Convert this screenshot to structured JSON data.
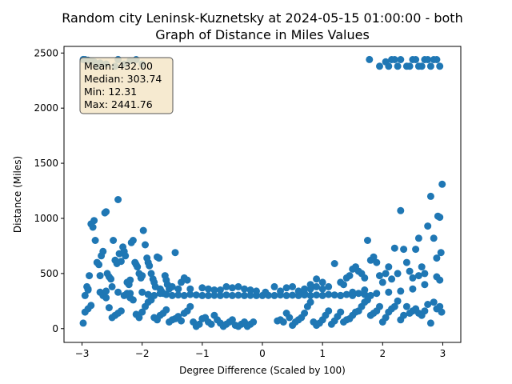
{
  "chart_data": {
    "type": "scatter",
    "title_line1": "Random city Leninsk-Kuznetsky at 2024-05-15 01:00:00  - both",
    "title_line2": "Graph of Distance in Miles Values",
    "xlabel": "Degree Difference (Scaled by 100)",
    "ylabel": "Distance (Miles)",
    "xlim": [
      -3.3,
      3.3
    ],
    "ylim": [
      -125,
      2560
    ],
    "x_ticks": [
      -3,
      -2,
      -1,
      0,
      1,
      2,
      3
    ],
    "y_ticks": [
      0,
      500,
      1000,
      1500,
      2000,
      2500
    ],
    "grid": false,
    "marker_color": "#1f77b4",
    "stats": {
      "mean": "Mean: 432.00",
      "median": "Median: 303.74",
      "min": "Min: 12.31",
      "max": "Max: 2441.76"
    },
    "stats_box_color": "#f5e6c8",
    "points": [
      [
        -2.98,
        2441
      ],
      [
        -2.95,
        2440
      ],
      [
        -2.9,
        2435
      ],
      [
        -2.85,
        2430
      ],
      [
        -2.8,
        2420
      ],
      [
        -2.75,
        2380
      ],
      [
        -2.7,
        2410
      ],
      [
        -2.6,
        2400
      ],
      [
        -2.45,
        2380
      ],
      [
        -2.4,
        2441
      ],
      [
        -2.3,
        2400
      ],
      [
        -2.2,
        2430
      ],
      [
        -2.1,
        2440
      ],
      [
        -2.0,
        2400
      ],
      [
        1.78,
        2441
      ],
      [
        1.95,
        2380
      ],
      [
        2.05,
        2420
      ],
      [
        2.1,
        2380
      ],
      [
        2.15,
        2440
      ],
      [
        2.2,
        2440
      ],
      [
        2.25,
        2380
      ],
      [
        2.3,
        2440
      ],
      [
        2.4,
        2380
      ],
      [
        2.45,
        2380
      ],
      [
        2.5,
        2440
      ],
      [
        2.55,
        2440
      ],
      [
        2.6,
        2380
      ],
      [
        2.65,
        2380
      ],
      [
        2.7,
        2440
      ],
      [
        2.75,
        2440
      ],
      [
        2.8,
        2380
      ],
      [
        2.85,
        2440
      ],
      [
        2.9,
        2440
      ],
      [
        2.95,
        2380
      ],
      [
        -2.98,
        50
      ],
      [
        -2.95,
        300
      ],
      [
        -2.92,
        380
      ],
      [
        -2.9,
        350
      ],
      [
        -2.88,
        480
      ],
      [
        -2.85,
        950
      ],
      [
        -2.82,
        920
      ],
      [
        -2.8,
        980
      ],
      [
        -2.78,
        800
      ],
      [
        -2.75,
        600
      ],
      [
        -2.72,
        580
      ],
      [
        -2.7,
        480
      ],
      [
        -2.68,
        660
      ],
      [
        -2.65,
        700
      ],
      [
        -2.62,
        1050
      ],
      [
        -2.6,
        1060
      ],
      [
        -2.58,
        500
      ],
      [
        -2.55,
        470
      ],
      [
        -2.52,
        450
      ],
      [
        -2.5,
        380
      ],
      [
        -2.48,
        800
      ],
      [
        -2.45,
        620
      ],
      [
        -2.42,
        590
      ],
      [
        -2.4,
        1170
      ],
      [
        -2.38,
        680
      ],
      [
        -2.35,
        610
      ],
      [
        -2.32,
        740
      ],
      [
        -2.3,
        700
      ],
      [
        -2.28,
        660
      ],
      [
        -2.25,
        420
      ],
      [
        -2.22,
        400
      ],
      [
        -2.2,
        440
      ],
      [
        -2.18,
        780
      ],
      [
        -2.15,
        800
      ],
      [
        -2.12,
        600
      ],
      [
        -2.1,
        580
      ],
      [
        -2.08,
        560
      ],
      [
        -2.05,
        500
      ],
      [
        -2.02,
        460
      ],
      [
        -2.0,
        480
      ],
      [
        -1.98,
        890
      ],
      [
        -1.95,
        760
      ],
      [
        -1.92,
        640
      ],
      [
        -1.9,
        600
      ],
      [
        -1.88,
        570
      ],
      [
        -1.85,
        500
      ],
      [
        -1.82,
        450
      ],
      [
        -1.8,
        420
      ],
      [
        -1.78,
        380
      ],
      [
        -1.75,
        650
      ],
      [
        -1.72,
        640
      ],
      [
        -1.7,
        360
      ],
      [
        -1.68,
        340
      ],
      [
        -1.65,
        320
      ],
      [
        -1.62,
        480
      ],
      [
        -1.6,
        440
      ],
      [
        -1.58,
        400
      ],
      [
        -1.55,
        360
      ],
      [
        -1.5,
        380
      ],
      [
        -1.45,
        690
      ],
      [
        -1.4,
        360
      ],
      [
        -1.35,
        420
      ],
      [
        -1.3,
        460
      ],
      [
        -1.25,
        440
      ],
      [
        -2.95,
        150
      ],
      [
        -2.9,
        180
      ],
      [
        -2.85,
        210
      ],
      [
        -2.7,
        330
      ],
      [
        -2.65,
        300
      ],
      [
        -2.6,
        280
      ],
      [
        -2.55,
        190
      ],
      [
        -2.5,
        100
      ],
      [
        -2.45,
        120
      ],
      [
        -2.4,
        140
      ],
      [
        -2.35,
        160
      ],
      [
        -2.3,
        300
      ],
      [
        -2.25,
        320
      ],
      [
        -2.2,
        280
      ],
      [
        -2.15,
        260
      ],
      [
        -2.1,
        130
      ],
      [
        -2.05,
        100
      ],
      [
        -2.0,
        150
      ],
      [
        -1.95,
        200
      ],
      [
        -1.9,
        240
      ],
      [
        -1.85,
        260
      ],
      [
        -1.8,
        100
      ],
      [
        -1.75,
        80
      ],
      [
        -1.7,
        120
      ],
      [
        -1.65,
        140
      ],
      [
        -1.6,
        170
      ],
      [
        -1.55,
        60
      ],
      [
        -1.5,
        80
      ],
      [
        -1.45,
        90
      ],
      [
        -1.4,
        110
      ],
      [
        -1.35,
        70
      ],
      [
        -1.3,
        140
      ],
      [
        -1.25,
        160
      ],
      [
        -1.2,
        200
      ],
      [
        -1.15,
        60
      ],
      [
        -1.1,
        20
      ],
      [
        -1.05,
        40
      ],
      [
        -1.0,
        90
      ],
      [
        -0.95,
        100
      ],
      [
        -0.9,
        60
      ],
      [
        -0.85,
        40
      ],
      [
        -0.8,
        120
      ],
      [
        -0.75,
        80
      ],
      [
        -0.7,
        50
      ],
      [
        -0.65,
        20
      ],
      [
        -0.6,
        40
      ],
      [
        -0.55,
        60
      ],
      [
        -0.5,
        80
      ],
      [
        -0.45,
        30
      ],
      [
        -0.4,
        20
      ],
      [
        -0.35,
        40
      ],
      [
        -0.3,
        60
      ],
      [
        -0.25,
        20
      ],
      [
        -0.2,
        40
      ],
      [
        -0.15,
        60
      ],
      [
        -2.9,
        360
      ],
      [
        -2.6,
        340
      ],
      [
        -2.4,
        330
      ],
      [
        -2.2,
        320
      ],
      [
        -2.0,
        330
      ],
      [
        -1.9,
        310
      ],
      [
        -1.8,
        300
      ],
      [
        -1.7,
        320
      ],
      [
        -1.6,
        310
      ],
      [
        -1.5,
        300
      ],
      [
        -1.4,
        305
      ],
      [
        -1.3,
        300
      ],
      [
        -1.2,
        310
      ],
      [
        -1.1,
        305
      ],
      [
        -1.0,
        300
      ],
      [
        -0.9,
        300
      ],
      [
        -0.8,
        302
      ],
      [
        -0.7,
        300
      ],
      [
        -0.6,
        305
      ],
      [
        -0.5,
        300
      ],
      [
        -0.4,
        303
      ],
      [
        -0.3,
        300
      ],
      [
        -0.2,
        302
      ],
      [
        -0.1,
        300
      ],
      [
        0.0,
        300
      ],
      [
        0.1,
        302
      ],
      [
        0.2,
        300
      ],
      [
        0.3,
        305
      ],
      [
        0.4,
        300
      ],
      [
        0.5,
        303
      ],
      [
        0.6,
        300
      ],
      [
        0.7,
        305
      ],
      [
        0.8,
        300
      ],
      [
        0.9,
        305
      ],
      [
        1.0,
        300
      ],
      [
        1.1,
        310
      ],
      [
        1.2,
        305
      ],
      [
        1.3,
        300
      ],
      [
        1.4,
        310
      ],
      [
        1.5,
        300
      ],
      [
        1.6,
        320
      ],
      [
        1.7,
        310
      ],
      [
        1.8,
        300
      ],
      [
        -1.2,
        360
      ],
      [
        -1.0,
        370
      ],
      [
        -0.9,
        360
      ],
      [
        -0.8,
        350
      ],
      [
        -0.7,
        350
      ],
      [
        -0.6,
        380
      ],
      [
        -0.5,
        370
      ],
      [
        -0.4,
        380
      ],
      [
        -0.3,
        360
      ],
      [
        -0.2,
        350
      ],
      [
        -0.1,
        340
      ],
      [
        0.05,
        330
      ],
      [
        0.2,
        380
      ],
      [
        0.3,
        340
      ],
      [
        0.4,
        370
      ],
      [
        0.5,
        380
      ],
      [
        0.6,
        340
      ],
      [
        0.7,
        320
      ],
      [
        0.8,
        360
      ],
      [
        0.9,
        380
      ],
      [
        1.0,
        360
      ],
      [
        1.1,
        380
      ],
      [
        0.25,
        70
      ],
      [
        0.3,
        80
      ],
      [
        0.35,
        60
      ],
      [
        0.4,
        140
      ],
      [
        0.45,
        100
      ],
      [
        0.5,
        30
      ],
      [
        0.55,
        60
      ],
      [
        0.6,
        80
      ],
      [
        0.65,
        100
      ],
      [
        0.7,
        140
      ],
      [
        0.75,
        200
      ],
      [
        0.8,
        240
      ],
      [
        0.85,
        60
      ],
      [
        0.9,
        30
      ],
      [
        0.95,
        50
      ],
      [
        1.0,
        80
      ],
      [
        1.05,
        120
      ],
      [
        1.1,
        160
      ],
      [
        1.15,
        40
      ],
      [
        1.2,
        70
      ],
      [
        1.25,
        110
      ],
      [
        1.3,
        150
      ],
      [
        1.35,
        60
      ],
      [
        1.4,
        80
      ],
      [
        1.45,
        90
      ],
      [
        1.5,
        120
      ],
      [
        1.55,
        150
      ],
      [
        1.6,
        160
      ],
      [
        1.65,
        200
      ],
      [
        1.7,
        240
      ],
      [
        1.75,
        260
      ],
      [
        1.8,
        120
      ],
      [
        1.85,
        140
      ],
      [
        1.9,
        160
      ],
      [
        1.95,
        200
      ],
      [
        2.0,
        60
      ],
      [
        2.05,
        100
      ],
      [
        2.1,
        150
      ],
      [
        2.15,
        180
      ],
      [
        2.2,
        200
      ],
      [
        2.25,
        250
      ],
      [
        2.3,
        80
      ],
      [
        2.35,
        120
      ],
      [
        2.4,
        200
      ],
      [
        2.45,
        140
      ],
      [
        2.5,
        160
      ],
      [
        2.55,
        180
      ],
      [
        2.6,
        140
      ],
      [
        2.65,
        120
      ],
      [
        2.7,
        160
      ],
      [
        2.75,
        220
      ],
      [
        2.8,
        50
      ],
      [
        2.85,
        240
      ],
      [
        2.9,
        180
      ],
      [
        2.95,
        200
      ],
      [
        2.98,
        150
      ],
      [
        1.3,
        420
      ],
      [
        1.35,
        400
      ],
      [
        1.4,
        460
      ],
      [
        1.45,
        480
      ],
      [
        1.5,
        540
      ],
      [
        1.55,
        560
      ],
      [
        1.6,
        520
      ],
      [
        1.65,
        500
      ],
      [
        1.7,
        460
      ],
      [
        1.75,
        800
      ],
      [
        1.8,
        620
      ],
      [
        1.85,
        650
      ],
      [
        1.9,
        600
      ],
      [
        1.95,
        480
      ],
      [
        2.0,
        420
      ],
      [
        2.05,
        500
      ],
      [
        2.1,
        560
      ],
      [
        2.15,
        450
      ],
      [
        2.2,
        730
      ],
      [
        2.25,
        500
      ],
      [
        2.3,
        1070
      ],
      [
        2.35,
        720
      ],
      [
        2.4,
        600
      ],
      [
        2.45,
        520
      ],
      [
        2.5,
        460
      ],
      [
        2.55,
        720
      ],
      [
        2.6,
        820
      ],
      [
        2.65,
        560
      ],
      [
        2.7,
        500
      ],
      [
        2.75,
        930
      ],
      [
        2.8,
        1200
      ],
      [
        2.85,
        820
      ],
      [
        2.9,
        640
      ],
      [
        2.92,
        1020
      ],
      [
        2.95,
        1010
      ],
      [
        2.97,
        690
      ],
      [
        2.99,
        1310
      ],
      [
        2.9,
        470
      ],
      [
        2.95,
        440
      ],
      [
        2.6,
        480
      ],
      [
        2.7,
        400
      ],
      [
        2.5,
        360
      ],
      [
        2.3,
        340
      ],
      [
        2.1,
        330
      ],
      [
        1.9,
        320
      ],
      [
        1.7,
        350
      ],
      [
        1.5,
        330
      ],
      [
        1.3,
        300
      ],
      [
        1.2,
        590
      ],
      [
        1.0,
        420
      ],
      [
        0.9,
        450
      ],
      [
        0.8,
        400
      ],
      [
        0.7,
        360
      ]
    ]
  }
}
